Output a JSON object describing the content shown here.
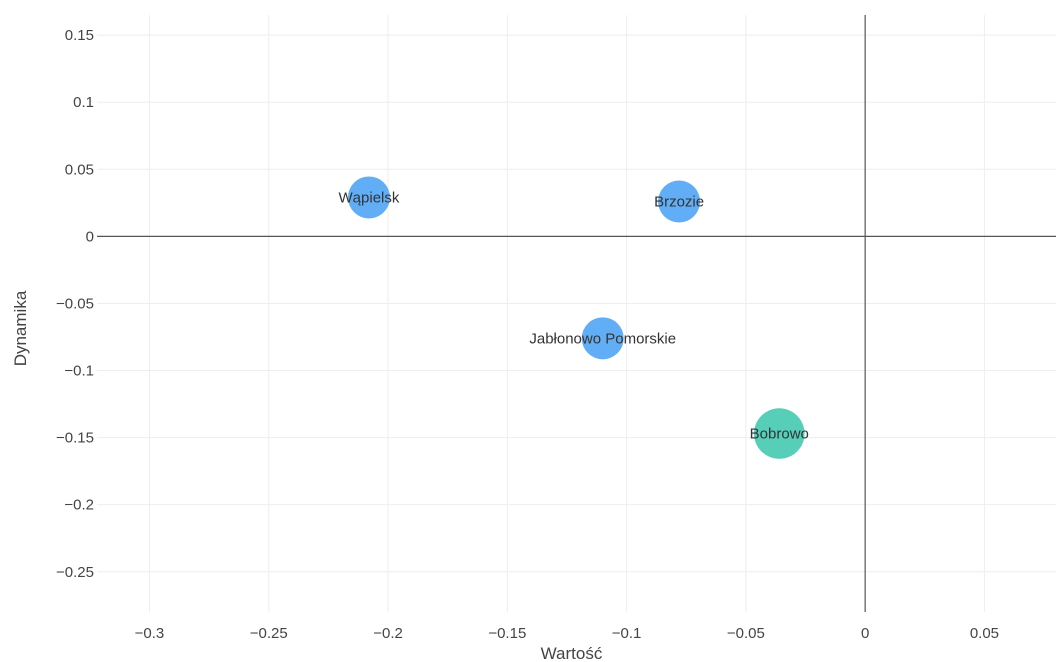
{
  "chart_data": {
    "type": "scatter",
    "title": "",
    "xlabel": "Wartość",
    "ylabel": "Dynamika",
    "xlim": [
      -0.322,
      0.08
    ],
    "ylim": [
      -0.28,
      0.165
    ],
    "x_ticks": [
      -0.3,
      -0.25,
      -0.2,
      -0.15,
      -0.1,
      -0.05,
      0,
      0.05
    ],
    "x_tick_labels": [
      "−0.3",
      "−0.25",
      "−0.2",
      "−0.15",
      "−0.1",
      "−0.05",
      "0",
      "0.05"
    ],
    "y_ticks": [
      0.15,
      0.1,
      0.05,
      0,
      -0.05,
      -0.1,
      -0.15,
      -0.2,
      -0.25
    ],
    "y_tick_labels": [
      "0.15",
      "0.1",
      "0.05",
      "0",
      "−0.05",
      "−0.1",
      "−0.15",
      "−0.2",
      "−0.25"
    ],
    "grid": true,
    "zero_lines": true,
    "points": [
      {
        "label": "Wąpielsk",
        "x": -0.208,
        "y": 0.029,
        "size": 1,
        "color": "#5aaaf5"
      },
      {
        "label": "Brzozie",
        "x": -0.078,
        "y": 0.026,
        "size": 1,
        "color": "#5aaaf5"
      },
      {
        "label": "Jabłonowo Pomorskie",
        "x": -0.11,
        "y": -0.076,
        "size": 1,
        "color": "#5aaaf5"
      },
      {
        "label": "Bobrowo",
        "x": -0.036,
        "y": -0.147,
        "size": 1.45,
        "color": "#4ecbb4"
      }
    ]
  }
}
